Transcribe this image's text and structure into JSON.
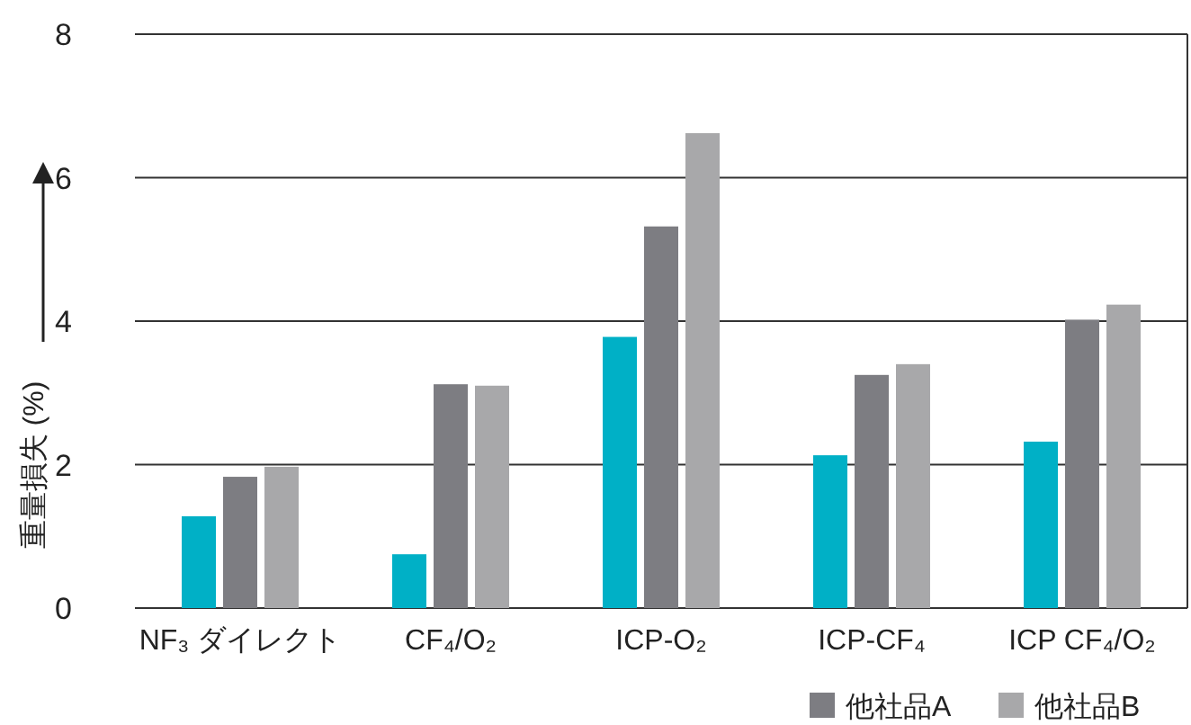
{
  "chart_data": {
    "type": "bar",
    "ylabel": "重量損失 (%)",
    "categories": [
      "NF₃ ダイレクト",
      "CF₄/O₂",
      "ICP-O₂",
      "ICP-CF₄",
      "ICP CF₄/O₂"
    ],
    "series": [
      {
        "color": "#00b0c6",
        "values": [
          1.28,
          0.75,
          3.78,
          2.13,
          2.32
        ]
      },
      {
        "name": "他社品A",
        "color": "#7d7d82",
        "values": [
          1.83,
          3.12,
          5.32,
          3.25,
          4.02
        ]
      },
      {
        "name": "他社品B",
        "color": "#a8a8aa",
        "values": [
          1.97,
          3.1,
          6.62,
          3.4,
          4.23
        ]
      }
    ],
    "ylim": [
      0,
      8
    ],
    "yticks": [
      0,
      2,
      4,
      6,
      8
    ],
    "grid": "y",
    "legend": "bottom"
  }
}
